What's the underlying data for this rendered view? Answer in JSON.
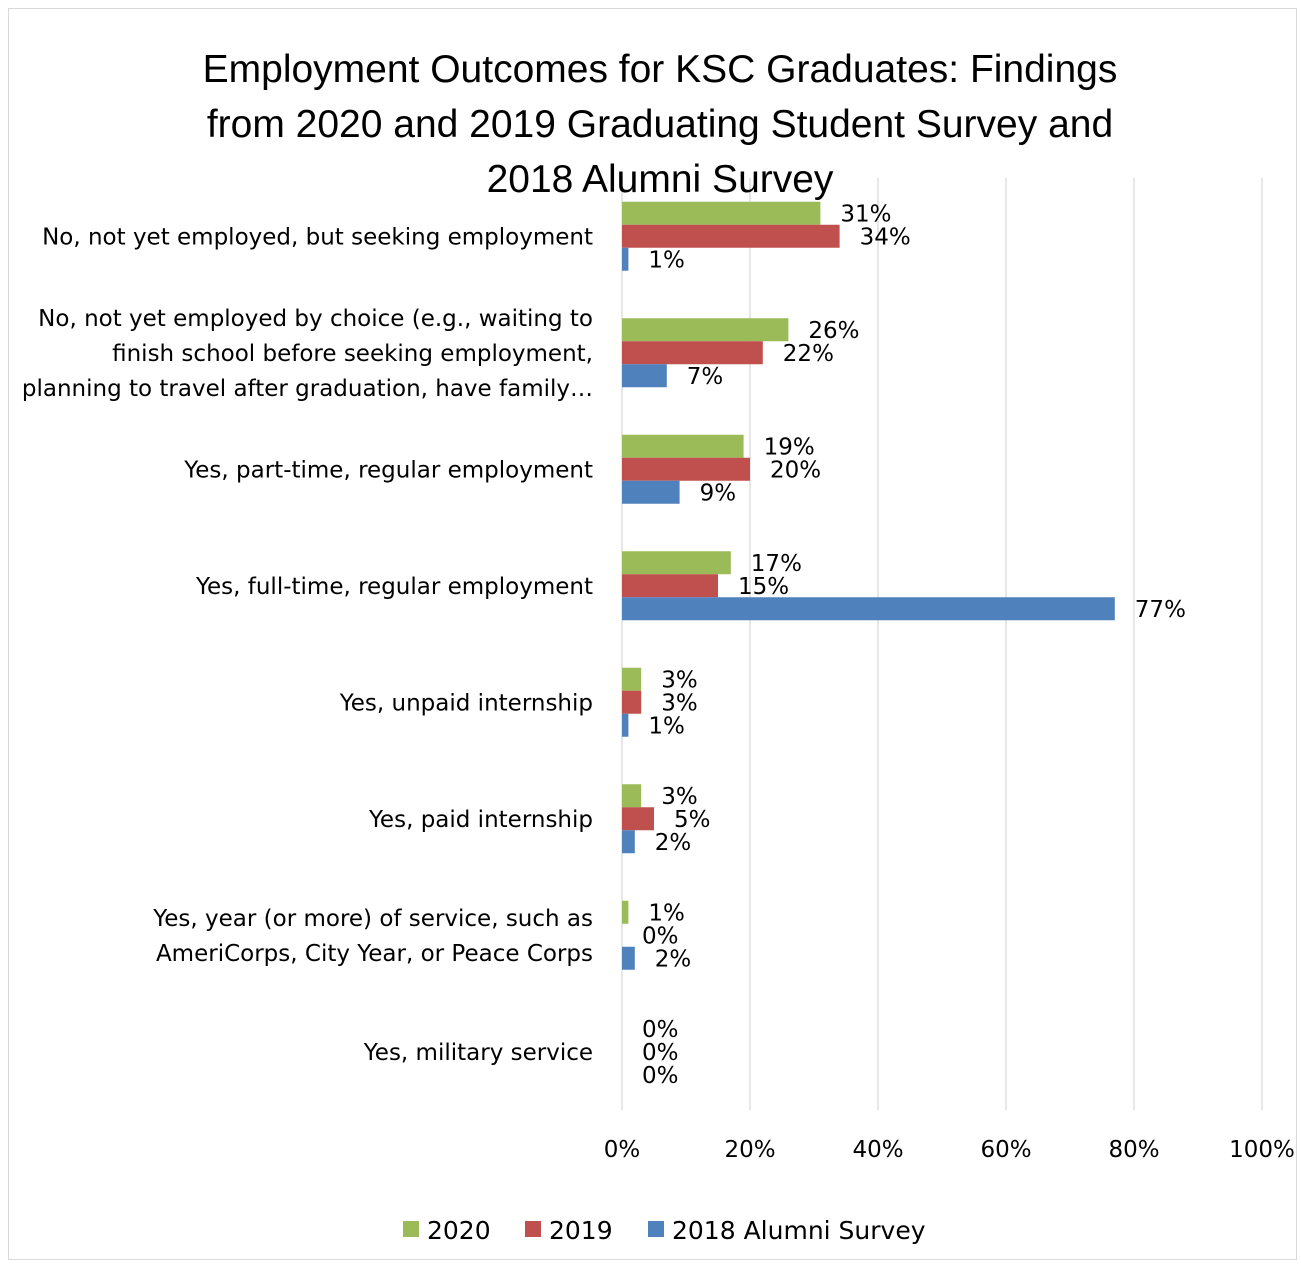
{
  "chart_data": {
    "type": "bar",
    "orientation": "horizontal",
    "title": "Employment Outcomes for KSC Graduates: Findings from 2020 and 2019 Graduating Student Survey and 2018 Alumni Survey",
    "title_lines": [
      "Employment Outcomes for KSC Graduates: Findings",
      "from 2020 and 2019 Graduating Student Survey and",
      "2018 Alumni Survey"
    ],
    "categories": [
      [
        "No, not yet employed, but seeking employment"
      ],
      [
        "No, not yet employed by choice (e.g., waiting to",
        "finish school before seeking employment,",
        "planning to travel after graduation, have family…"
      ],
      [
        "Yes, part-time, regular employment"
      ],
      [
        "Yes, full-time, regular employment"
      ],
      [
        "Yes, unpaid internship"
      ],
      [
        "Yes, paid internship"
      ],
      [
        "Yes, year (or more) of service, such as",
        "AmeriCorps, City Year, or Peace Corps"
      ],
      [
        "Yes, military service"
      ]
    ],
    "series": [
      {
        "name": "2020",
        "color": "#9bbb59",
        "values": [
          31,
          26,
          19,
          17,
          3,
          3,
          1,
          0
        ]
      },
      {
        "name": "2019",
        "color": "#c0504d",
        "values": [
          34,
          22,
          20,
          15,
          3,
          5,
          0,
          0
        ]
      },
      {
        "name": "2018 Alumni Survey",
        "color": "#4f81bd",
        "values": [
          1,
          7,
          9,
          77,
          1,
          2,
          2,
          0
        ]
      }
    ],
    "value_suffix": "%",
    "xlim": [
      0,
      100
    ],
    "x_ticks": [
      0,
      20,
      40,
      60,
      80,
      100
    ],
    "x_tick_labels": [
      "0%",
      "20%",
      "40%",
      "60%",
      "80%",
      "100%"
    ],
    "grid": true,
    "legend_position": "bottom"
  }
}
